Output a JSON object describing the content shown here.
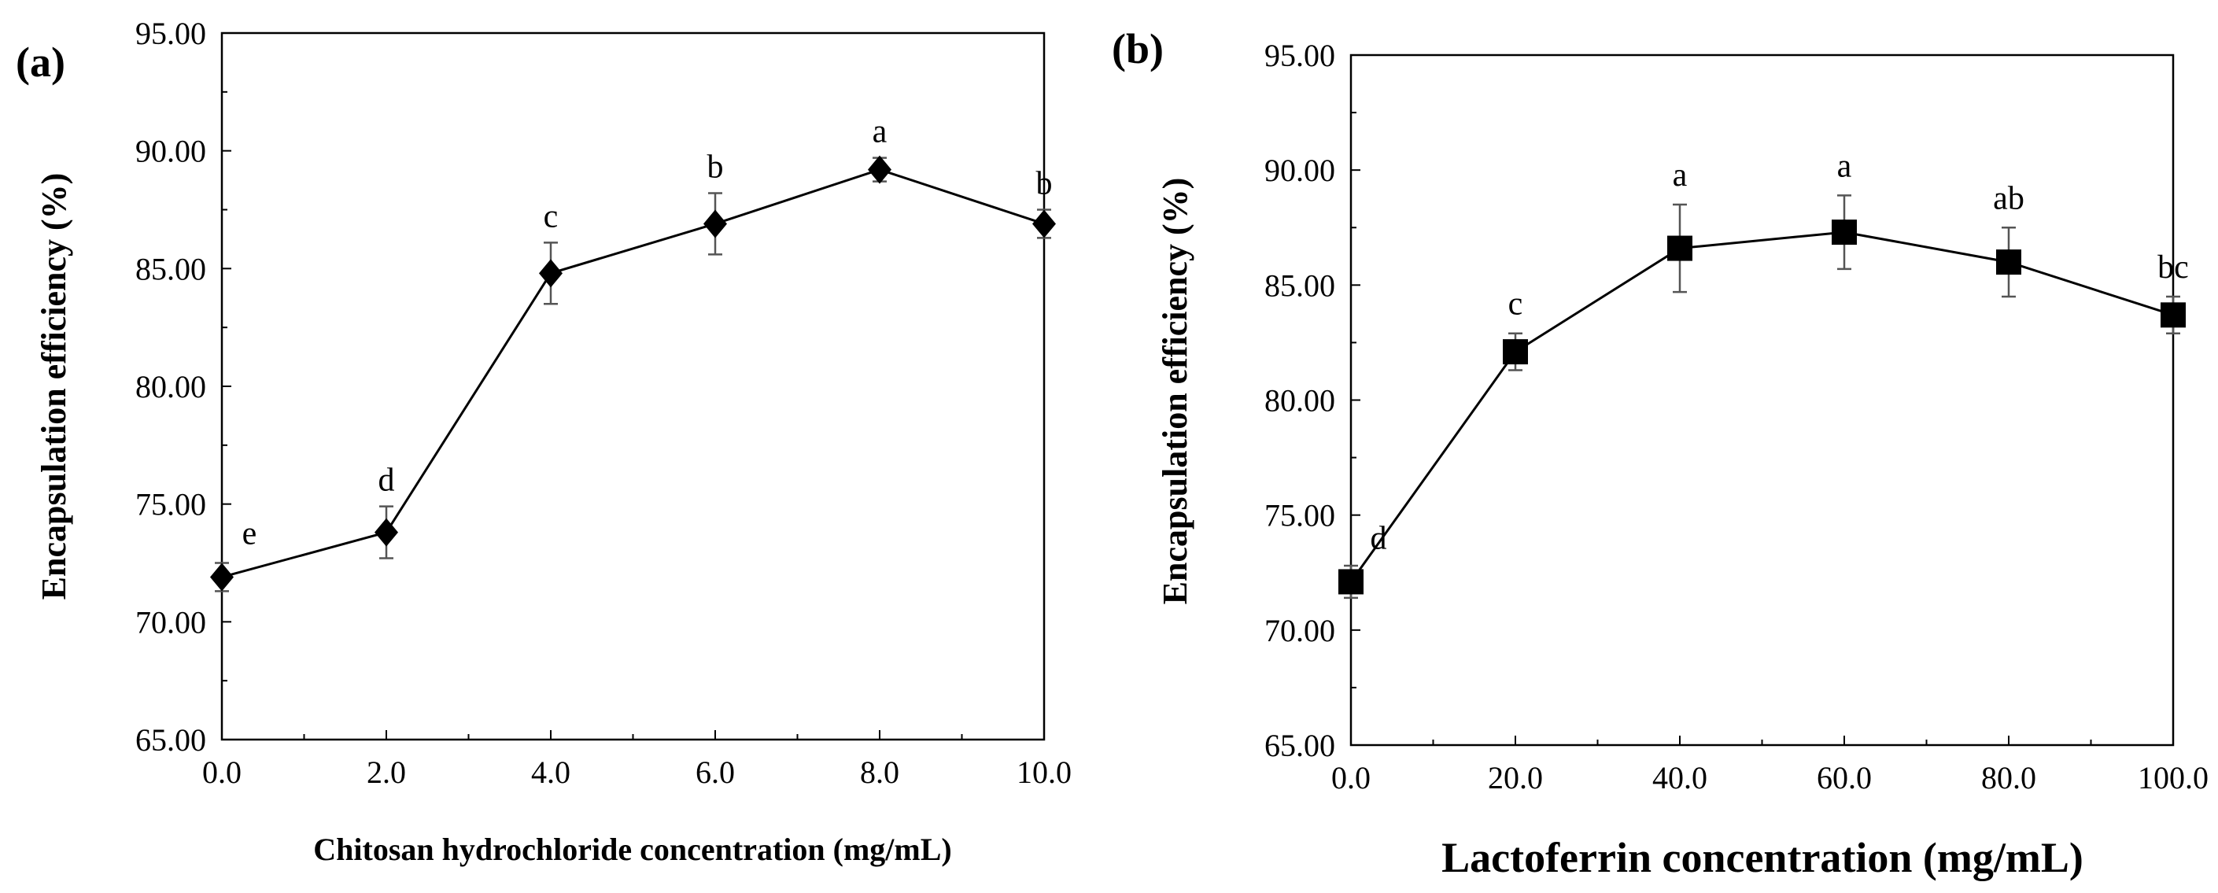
{
  "chart_data": [
    {
      "panel": "(a)",
      "type": "line",
      "xlabel": "Chitosan hydrochloride concentration (mg/mL)",
      "ylabel": "Encapsulation efficiency (%)",
      "xlim": [
        0,
        10
      ],
      "ylim": [
        65,
        95
      ],
      "x_ticks": [
        "0.0",
        "2.0",
        "4.0",
        "6.0",
        "8.0",
        "10.0"
      ],
      "y_ticks": [
        "65.00",
        "70.00",
        "75.00",
        "80.00",
        "85.00",
        "90.00",
        "95.00"
      ],
      "marker": "diamond",
      "x": [
        0,
        2,
        4,
        6,
        8,
        10
      ],
      "values": [
        71.9,
        73.8,
        84.8,
        86.9,
        89.2,
        86.9
      ],
      "error": [
        0.6,
        1.1,
        1.3,
        1.3,
        0.5,
        0.6
      ],
      "significance": [
        "e",
        "d",
        "c",
        "b",
        "a",
        "b"
      ]
    },
    {
      "panel": "(b)",
      "type": "line",
      "xlabel": "Lactoferrin concentration (mg/mL)",
      "ylabel": "Encapsulation efficiency (%)",
      "xlim": [
        0,
        100
      ],
      "ylim": [
        65,
        95
      ],
      "x_ticks": [
        "0.0",
        "20.0",
        "40.0",
        "60.0",
        "80.0",
        "100.0"
      ],
      "y_ticks": [
        "65.00",
        "70.00",
        "75.00",
        "80.00",
        "85.00",
        "90.00",
        "95.00"
      ],
      "marker": "square",
      "x": [
        0,
        20,
        40,
        60,
        80,
        100
      ],
      "values": [
        72.1,
        82.1,
        86.6,
        87.3,
        86.0,
        83.7
      ],
      "error": [
        0.7,
        0.8,
        1.9,
        1.6,
        1.5,
        0.8
      ],
      "significance": [
        "d",
        "c",
        "a",
        "a",
        "ab",
        "bc"
      ]
    }
  ]
}
